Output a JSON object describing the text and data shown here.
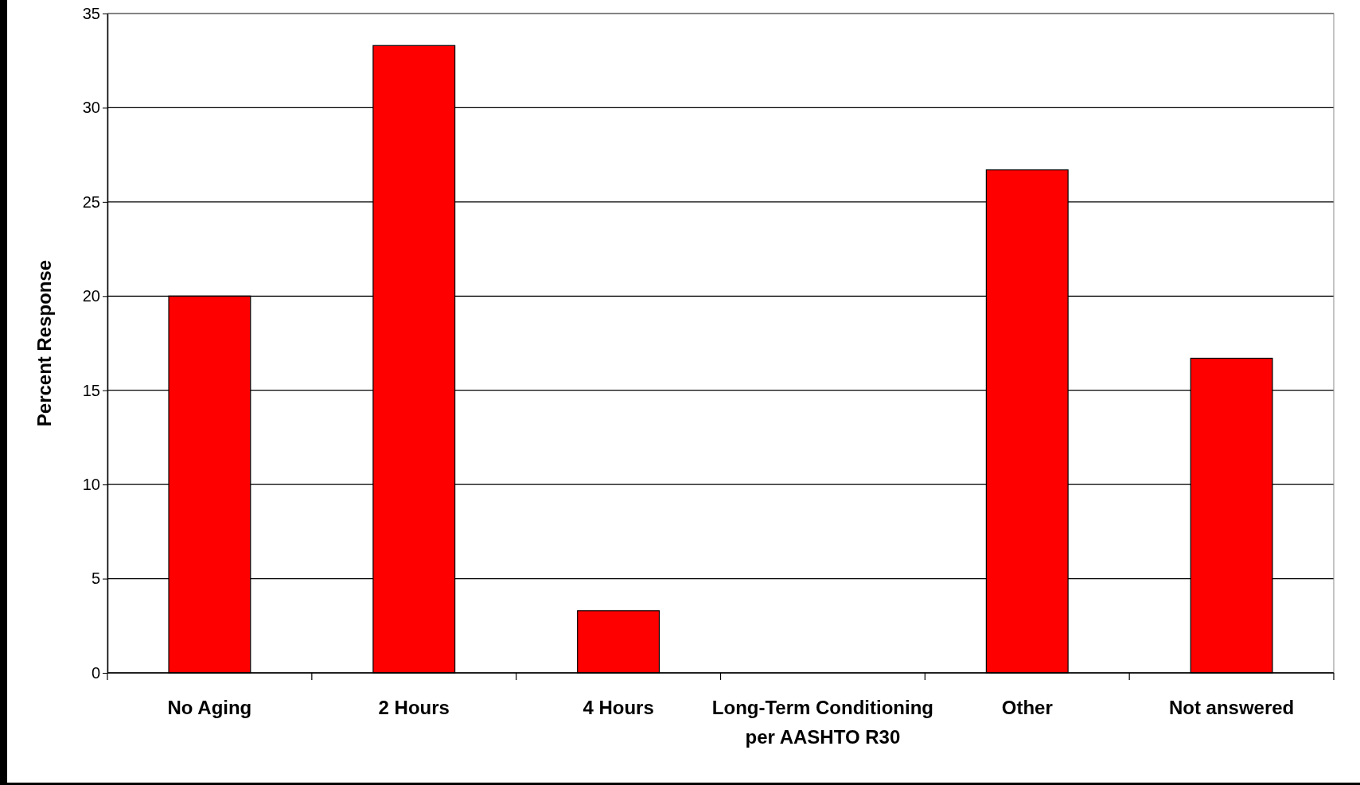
{
  "chart_data": {
    "type": "bar",
    "ylabel": "Percent Response",
    "categories": [
      "No Aging",
      "2 Hours",
      "4 Hours",
      "Long-Term Conditioning per AASHTO R30",
      "Other",
      "Not answered"
    ],
    "values": [
      20,
      33.3,
      3.3,
      0,
      26.7,
      16.7
    ],
    "color": "#ff0000",
    "ylim": [
      0,
      35
    ],
    "yticks": [
      0,
      5,
      10,
      15,
      20,
      25,
      30,
      35
    ],
    "grid": "y"
  }
}
